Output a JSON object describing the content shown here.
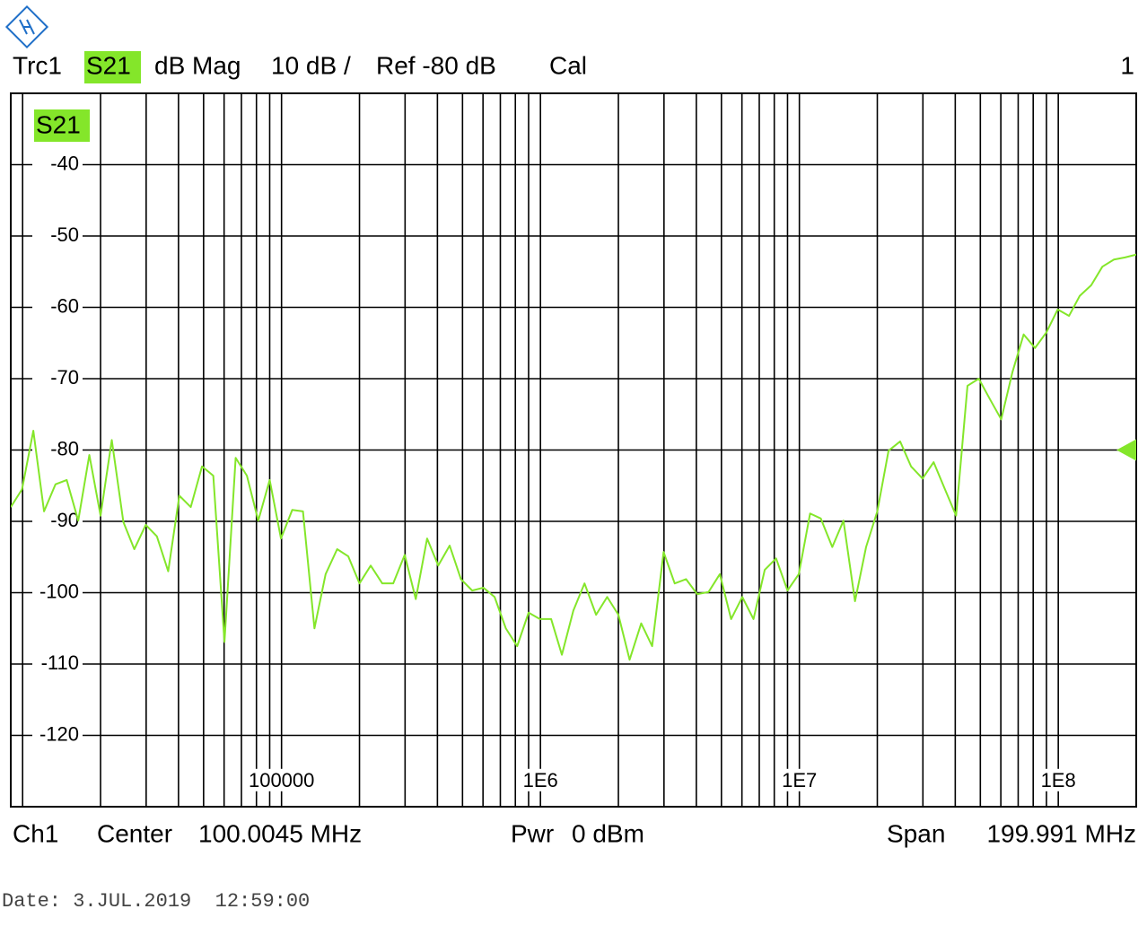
{
  "chart_data": {
    "type": "line",
    "trace": "Trc1",
    "parameter": "S21",
    "format": "dB Mag",
    "scale": "10 dB /",
    "reference": "Ref -80 dB",
    "calibration": "Cal",
    "window": "1",
    "ref_level": -80,
    "channel": "Ch1",
    "center_label": "Center",
    "center": "100.0045 MHz",
    "power_label": "Pwr",
    "power": "0 dBm",
    "span_label": "Span",
    "span": "199.991 MHz",
    "date": "Date: 3.JUL.2019  12:59:00",
    "xscale": "log",
    "xlim": [
      9000,
      200000000
    ],
    "ylim": [
      -130,
      -30
    ],
    "yticks": [
      -40,
      -50,
      -60,
      -70,
      -80,
      -90,
      -100,
      -110,
      -120
    ],
    "xticks": [
      {
        "value": 100000,
        "label": "100000"
      },
      {
        "value": 1000000,
        "label": "1E6"
      },
      {
        "value": 10000000,
        "label": "1E7"
      },
      {
        "value": 100000000,
        "label": "1E8"
      }
    ],
    "x_minor_grid": [
      10000,
      20000,
      30000,
      40000,
      50000,
      60000,
      70000,
      80000,
      90000,
      200000,
      300000,
      400000,
      500000,
      600000,
      700000,
      800000,
      900000,
      2000000,
      3000000,
      4000000,
      5000000,
      6000000,
      7000000,
      8000000,
      9000000,
      20000000,
      30000000,
      40000000,
      50000000,
      60000000,
      70000000,
      80000000,
      90000000
    ],
    "grid": true,
    "x": [
      9000,
      9950,
      11000,
      12100,
      13400,
      14800,
      16400,
      18100,
      20000,
      22100,
      24500,
      27000,
      29900,
      33000,
      36500,
      40300,
      44600,
      49300,
      54500,
      60200,
      66500,
      73500,
      81300,
      90000,
      99500,
      110000,
      121000,
      134000,
      148000,
      164000,
      181000,
      200000,
      221000,
      245000,
      270000,
      299000,
      330000,
      365000,
      403000,
      446000,
      493000,
      545000,
      602000,
      665000,
      735000,
      813000,
      900000,
      995000,
      1100000,
      1210000,
      1340000,
      1480000,
      1640000,
      1810000,
      2000000,
      2210000,
      2450000,
      2700000,
      2990000,
      3300000,
      3650000,
      4030000,
      4460000,
      4930000,
      5450000,
      6020000,
      6650000,
      7350000,
      8130000,
      9000000,
      9950000,
      11000000,
      12100000,
      13400000,
      14800000,
      16400000,
      18100000,
      20000000,
      22100000,
      24500000,
      27000000,
      29900000,
      33000000,
      36500000,
      40300000,
      44600000,
      49300000,
      54500000,
      60200000,
      66500000,
      73500000,
      81300000,
      90000000,
      99500000,
      110000000,
      121000000,
      134000000,
      148000000,
      164000000,
      181000000,
      200000000
    ],
    "series": [
      {
        "name": "S21",
        "color": "#84e62a",
        "values": [
          -88.0,
          -85.5,
          -77.3,
          -88.6,
          -84.8,
          -84.2,
          -89.9,
          -80.7,
          -89.2,
          -78.6,
          -90.1,
          -93.9,
          -90.5,
          -92.1,
          -97.0,
          -86.4,
          -88.0,
          -82.3,
          -83.6,
          -106.9,
          -81.1,
          -83.6,
          -89.9,
          -84.2,
          -92.4,
          -88.4,
          -88.6,
          -105.0,
          -97.4,
          -93.9,
          -94.9,
          -98.7,
          -96.2,
          -98.7,
          -98.7,
          -94.7,
          -100.9,
          -92.4,
          -96.2,
          -93.4,
          -98.1,
          -99.7,
          -99.3,
          -100.6,
          -105.0,
          -107.5,
          -102.8,
          -103.7,
          -103.7,
          -108.7,
          -102.5,
          -98.7,
          -103.1,
          -100.6,
          -103.1,
          -109.4,
          -104.3,
          -107.5,
          -94.3,
          -98.7,
          -98.1,
          -100.2,
          -99.9,
          -97.4,
          -103.7,
          -100.6,
          -103.7,
          -96.8,
          -95.2,
          -99.7,
          -97.4,
          -88.9,
          -89.6,
          -93.6,
          -89.9,
          -101.2,
          -93.6,
          -88.6,
          -80.1,
          -78.8,
          -82.3,
          -84.0,
          -81.7,
          -85.5,
          -89.2,
          -71.0,
          -70.0,
          -72.9,
          -75.7,
          -69.1,
          -63.8,
          -65.7,
          -63.5,
          -60.3,
          -61.2,
          -58.4,
          -56.9,
          -54.3,
          -53.3,
          -53.0,
          -52.6
        ]
      }
    ]
  }
}
